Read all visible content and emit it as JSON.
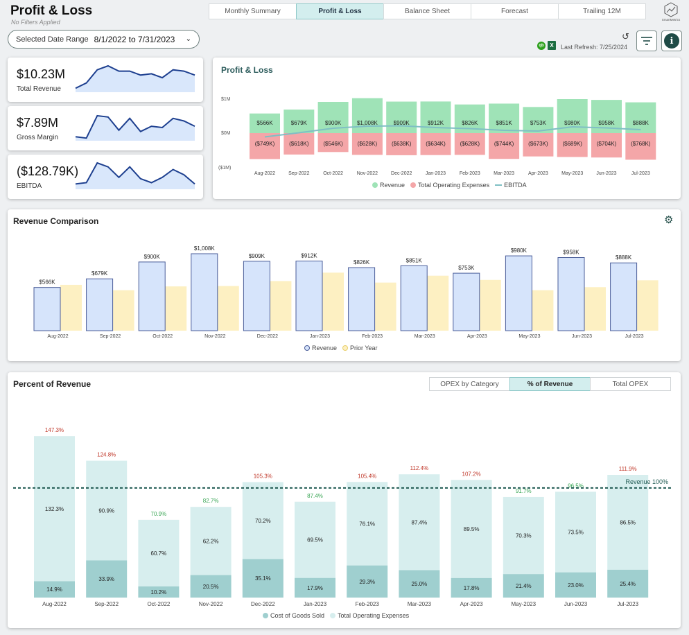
{
  "header": {
    "title": "Profit & Loss",
    "subtitle": "No Filters Applied",
    "date_range_label": "Selected Date Range",
    "date_range_value": "8/1/2022 to 7/31/2023",
    "last_refresh": "Last Refresh: 7/25/2024",
    "logo_text": "SmartMetrics"
  },
  "tabs": [
    {
      "label": "Monthly Summary",
      "active": false
    },
    {
      "label": "Profit & Loss",
      "active": true
    },
    {
      "label": "Balance Sheet",
      "active": false
    },
    {
      "label": "Forecast",
      "active": false
    },
    {
      "label": "Trailing 12M",
      "active": false
    }
  ],
  "kpis": [
    {
      "value": "$10.23M",
      "label": "Total Revenue",
      "spark": [
        0.15,
        0.35,
        0.85,
        1.0,
        0.8,
        0.8,
        0.65,
        0.7,
        0.55,
        0.85,
        0.8,
        0.65
      ]
    },
    {
      "value": "$7.89M",
      "label": "Gross Margin",
      "spark": [
        0.15,
        0.1,
        0.95,
        0.9,
        0.4,
        0.85,
        0.35,
        0.55,
        0.5,
        0.85,
        0.75,
        0.55
      ]
    },
    {
      "value": "($128.79K)",
      "label": "EBITDA",
      "spark": [
        0.2,
        0.25,
        1.0,
        0.85,
        0.45,
        0.85,
        0.4,
        0.25,
        0.45,
        0.75,
        0.55,
        0.2
      ]
    }
  ],
  "months": [
    "Aug-2022",
    "Sep-2022",
    "Oct-2022",
    "Nov-2022",
    "Dec-2022",
    "Jan-2023",
    "Feb-2023",
    "Mar-2023",
    "Apr-2023",
    "May-2023",
    "Jun-2023",
    "Jul-2023"
  ],
  "pl_chart": {
    "title": "Profit & Loss",
    "y_ticks": [
      "$1M",
      "$0M",
      "($1M)"
    ],
    "revenue": [
      566,
      679,
      900,
      1008,
      909,
      912,
      826,
      851,
      753,
      980,
      958,
      888
    ],
    "revenue_labels": [
      "$566K",
      "$679K",
      "$900K",
      "$1,008K",
      "$909K",
      "$912K",
      "$826K",
      "$851K",
      "$753K",
      "$980K",
      "$958K",
      "$888K"
    ],
    "opex": [
      749,
      618,
      546,
      628,
      638,
      634,
      628,
      744,
      673,
      689,
      704,
      768
    ],
    "opex_labels": [
      "($749K)",
      "($618K)",
      "($546K)",
      "($628K)",
      "($638K)",
      "($634K)",
      "($628K)",
      "($744K)",
      "($673K)",
      "($689K)",
      "($704K)",
      "($768K)"
    ],
    "ebitda": [
      -110,
      10,
      140,
      200,
      210,
      160,
      130,
      80,
      60,
      180,
      150,
      100
    ],
    "legend": [
      "Revenue",
      "Total Operating Expenses",
      "EBITDA"
    ],
    "colors": {
      "revenue": "#9fe3b7",
      "opex": "#f4a6a8",
      "ebitda": "#7fbfc4"
    }
  },
  "rev_chart": {
    "title": "Revenue Comparison",
    "revenue": [
      566,
      679,
      900,
      1008,
      909,
      912,
      826,
      851,
      753,
      980,
      958,
      888
    ],
    "labels": [
      "$566K",
      "$679K",
      "$900K",
      "$1,008K",
      "$909K",
      "$912K",
      "$826K",
      "$851K",
      "$753K",
      "$980K",
      "$958K",
      "$888K"
    ],
    "prior": [
      600,
      530,
      580,
      585,
      650,
      760,
      630,
      720,
      665,
      530,
      570,
      660
    ],
    "legend": [
      "Revenue",
      "Prior Year"
    ],
    "colors": {
      "revenue": "#d6e4fb",
      "revenue_border": "#4a5d99",
      "prior": "#fdf0c2"
    }
  },
  "pct_chart": {
    "title": "Percent of Revenue",
    "tabs": [
      {
        "label": "OPEX by Category",
        "active": false
      },
      {
        "label": "% of Revenue",
        "active": true
      },
      {
        "label": "Total OPEX",
        "active": false
      }
    ],
    "cogs": [
      14.9,
      33.9,
      10.2,
      20.5,
      35.1,
      17.9,
      29.3,
      25.0,
      17.8,
      21.4,
      23.0,
      25.4
    ],
    "cogs_labels": [
      "14.9%",
      "33.9%",
      "10.2%",
      "20.5%",
      "35.1%",
      "17.9%",
      "29.3%",
      "25.0%",
      "17.8%",
      "21.4%",
      "23.0%",
      "25.4%"
    ],
    "opex": [
      132.3,
      90.9,
      60.7,
      62.2,
      70.2,
      69.5,
      76.1,
      87.4,
      89.5,
      70.3,
      73.5,
      86.5
    ],
    "opex_labels": [
      "132.3%",
      "90.9%",
      "60.7%",
      "62.2%",
      "70.2%",
      "69.5%",
      "76.1%",
      "87.4%",
      "89.5%",
      "70.3%",
      "73.5%",
      "86.5%"
    ],
    "totals": [
      147.3,
      124.8,
      70.9,
      82.7,
      105.3,
      87.4,
      105.4,
      112.4,
      107.2,
      91.7,
      96.5,
      111.9
    ],
    "total_labels": [
      "147.3%",
      "124.8%",
      "70.9%",
      "82.7%",
      "105.3%",
      "87.4%",
      "105.4%",
      "112.4%",
      "107.2%",
      "91.7%",
      "96.5%",
      "111.9%"
    ],
    "reference_label": "Revenue  100%",
    "legend": [
      "Cost of Goods Sold",
      "Total Operating Expenses"
    ],
    "colors": {
      "cogs": "#9fcfcf",
      "opex": "#d7eeee",
      "over": "#c0392b",
      "under": "#3aa655",
      "ref": "#1f5a52"
    }
  }
}
